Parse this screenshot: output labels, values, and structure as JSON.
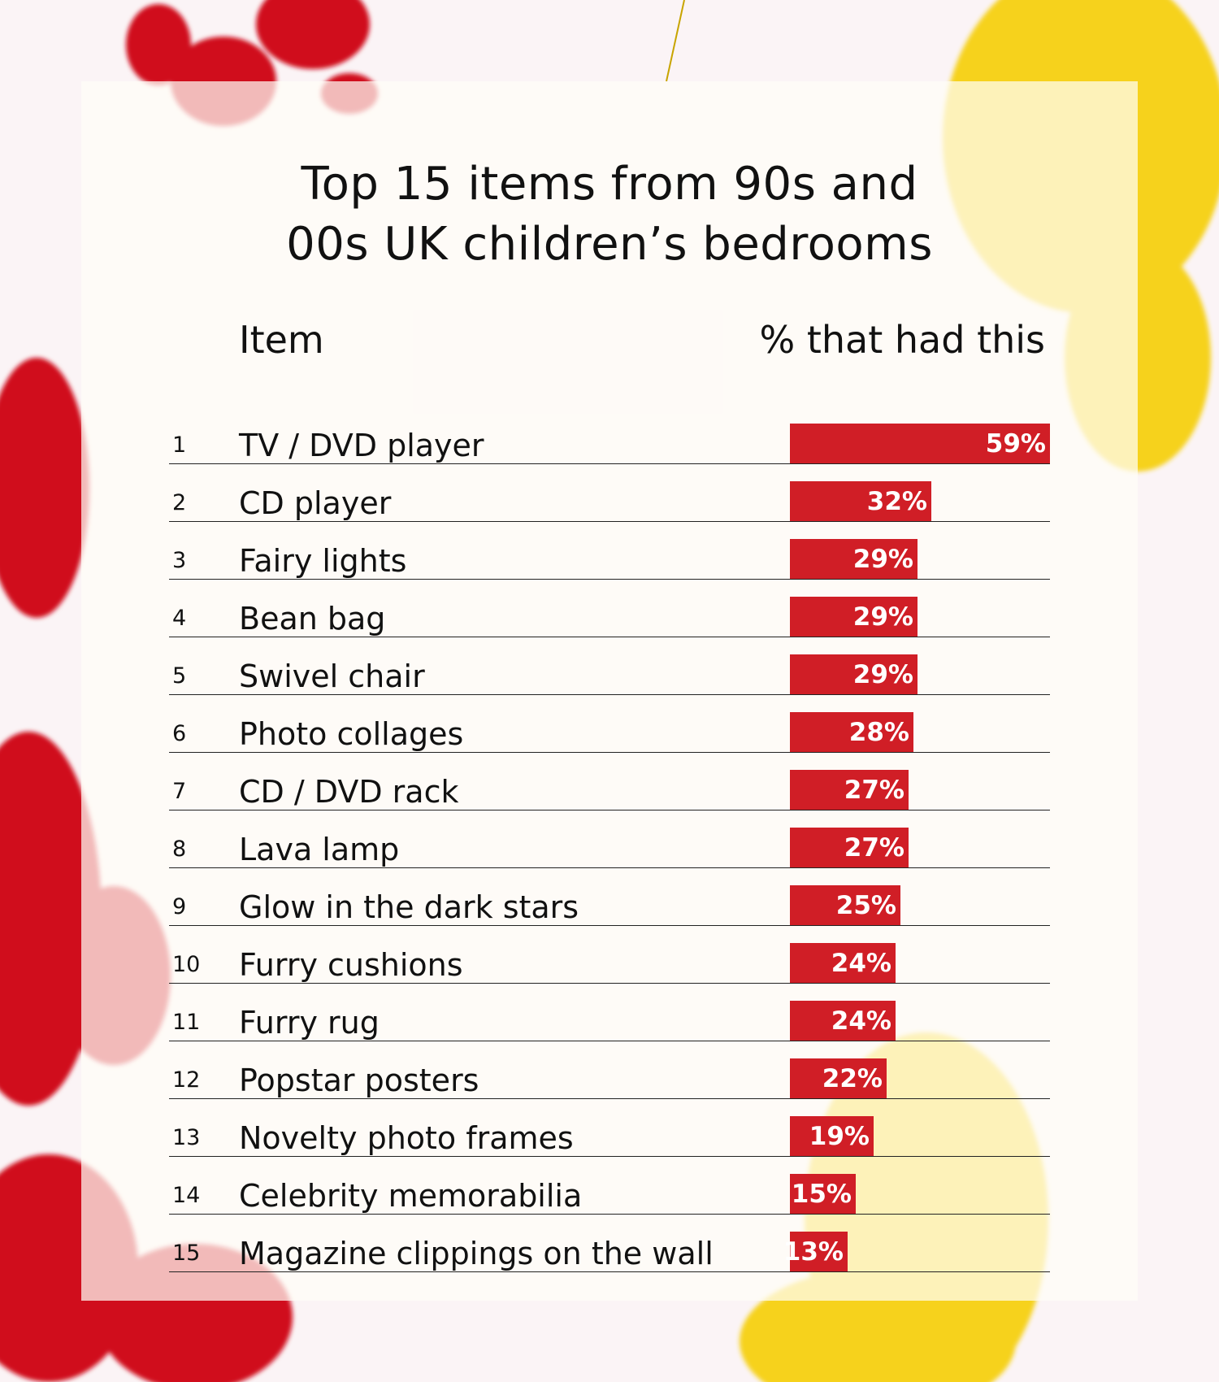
{
  "colors": {
    "bar": "#d01e26",
    "text": "#111111",
    "card": "#fffdf7",
    "blob_red": "#d0101c",
    "blob_yellow": "#f6d21a"
  },
  "header": {
    "title_line1": "Top 15 items from 90s and",
    "title_line2": "00s UK children’s bedrooms",
    "col_item": "Item",
    "col_pct": "% that had this"
  },
  "chart_data": {
    "type": "bar",
    "orientation": "horizontal",
    "title": "Top 15 items from 90s and 00s UK children’s bedrooms",
    "xlabel": "% that had this",
    "ylabel": "Item",
    "xlim": [
      0,
      59
    ],
    "grid": false,
    "legend": "none",
    "ranks": [
      "1",
      "2",
      "3",
      "4",
      "5",
      "6",
      "7",
      "8",
      "9",
      "10",
      "11",
      "12",
      "13",
      "14",
      "15"
    ],
    "categories": [
      "TV / DVD player",
      "CD player",
      "Fairy lights",
      "Bean bag",
      "Swivel chair",
      "Photo collages",
      "CD / DVD rack",
      "Lava lamp",
      "Glow in the dark stars",
      "Furry cushions",
      "Furry rug",
      "Popstar posters",
      "Novelty photo frames",
      "Celebrity memorabilia",
      "Magazine clippings on the wall"
    ],
    "values": [
      59,
      32,
      29,
      29,
      29,
      28,
      27,
      27,
      25,
      24,
      24,
      22,
      19,
      15,
      13
    ],
    "value_labels": [
      "59%",
      "32%",
      "29%",
      "29%",
      "29%",
      "28%",
      "27%",
      "27%",
      "25%",
      "24%",
      "24%",
      "22%",
      "19%",
      "15%",
      "13%"
    ]
  }
}
